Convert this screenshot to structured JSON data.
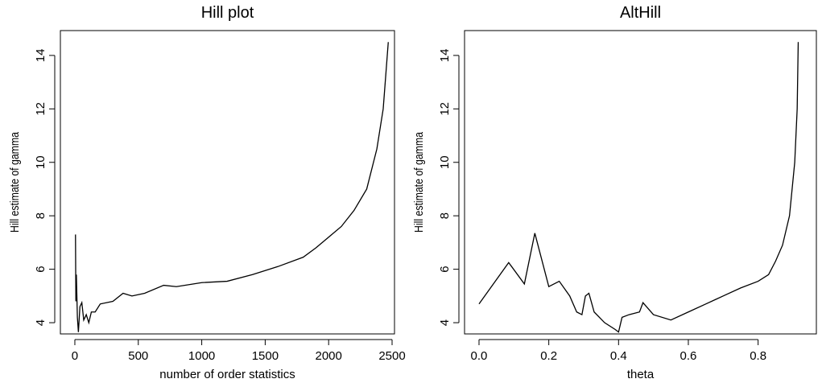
{
  "chart_data": [
    {
      "type": "line",
      "title": "Hill plot",
      "xlabel": "number of order statistics",
      "ylabel": "Hill estimate of gamma",
      "x": [
        5,
        8,
        12,
        20,
        28,
        40,
        55,
        70,
        90,
        110,
        130,
        160,
        200,
        300,
        380,
        450,
        550,
        700,
        800,
        1000,
        1200,
        1400,
        1600,
        1800,
        1900,
        2000,
        2100,
        2200,
        2300,
        2380,
        2430,
        2470
      ],
      "series": [
        {
          "color": "#000000",
          "values": [
            7.3,
            4.8,
            5.8,
            4.2,
            3.65,
            4.6,
            4.75,
            4.1,
            4.3,
            4.0,
            4.4,
            4.4,
            4.7,
            4.8,
            5.1,
            5.0,
            5.1,
            5.4,
            5.35,
            5.5,
            5.55,
            5.8,
            6.1,
            6.45,
            6.8,
            7.2,
            7.6,
            8.2,
            9.0,
            10.5,
            12.0,
            14.5
          ]
        }
      ],
      "xlim": [
        -114,
        2519
      ],
      "ylim": [
        3.58,
        14.93
      ],
      "xticks": [
        0,
        500,
        1000,
        1500,
        2000,
        2500
      ],
      "yticks": [
        4,
        6,
        8,
        10,
        12,
        14
      ]
    },
    {
      "type": "line",
      "title": "AltHill",
      "xlabel": "theta",
      "ylabel": "Hill estimate of gamma",
      "x": [
        0,
        0.085,
        0.13,
        0.16,
        0.2,
        0.23,
        0.26,
        0.28,
        0.295,
        0.305,
        0.315,
        0.33,
        0.36,
        0.39,
        0.4,
        0.41,
        0.43,
        0.46,
        0.47,
        0.5,
        0.55,
        0.6,
        0.65,
        0.7,
        0.75,
        0.8,
        0.83,
        0.85,
        0.87,
        0.89,
        0.905,
        0.912,
        0.915
      ],
      "series": [
        {
          "color": "#000000",
          "values": [
            4.7,
            6.25,
            5.45,
            7.35,
            5.35,
            5.55,
            5.0,
            4.4,
            4.3,
            5.0,
            5.1,
            4.4,
            4.0,
            3.75,
            3.65,
            4.2,
            4.3,
            4.4,
            4.75,
            4.3,
            4.1,
            4.4,
            4.7,
            5.0,
            5.3,
            5.55,
            5.8,
            6.3,
            6.9,
            8.0,
            10.0,
            12.0,
            14.5
          ]
        }
      ],
      "xlim": [
        -0.0415,
        0.967
      ],
      "ylim": [
        3.58,
        14.93
      ],
      "xticks": [
        {
          "value": 0,
          "label": "0.0"
        },
        0.2,
        0.4,
        0.6,
        0.8
      ],
      "yticks": [
        4,
        6,
        8,
        10,
        12,
        14
      ]
    }
  ]
}
